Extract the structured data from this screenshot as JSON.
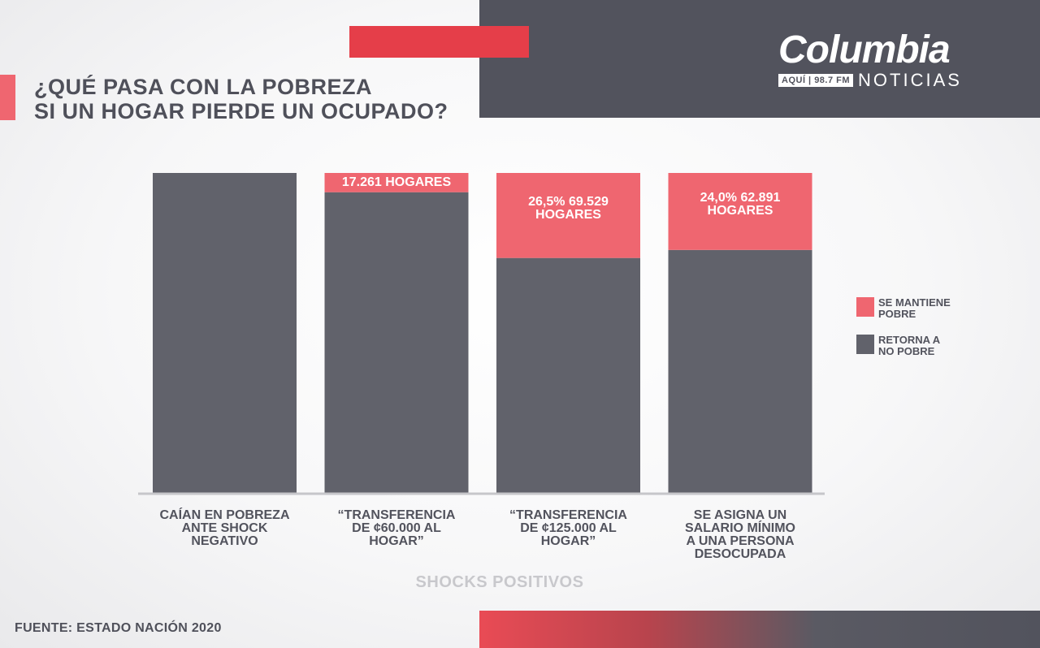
{
  "title_lines": [
    "¿QUÉ PASA CON LA POBREZA",
    "SI UN HOGAR PIERDE UN OCUPADO?"
  ],
  "logo": {
    "name": "Columbia",
    "frequency": "AQUÍ | 98.7 FM",
    "sub": "NOTICIAS"
  },
  "source": "FUENTE: ESTADO NACIÓN 2020",
  "colors": {
    "accent_red": "#e53e49",
    "pink": "#ef6670",
    "dark": "#52535d",
    "bar_dark": "#61626b"
  },
  "chart_data": {
    "type": "bar",
    "stacked": true,
    "percent": true,
    "categories": [
      [
        "CAÍAN EN POBREZA",
        "ANTE SHOCK",
        "NEGATIVO"
      ],
      [
        "“TRANSFERENCIA",
        "DE ¢60.000 AL",
        "HOGAR”"
      ],
      [
        "“TRANSFERENCIA",
        "DE ¢125.000 AL",
        "HOGAR”"
      ],
      [
        "SE ASIGNA UN",
        "SALARIO MÍNIMO",
        "A UNA PERSONA",
        "DESOCUPADA"
      ]
    ],
    "series": [
      {
        "name": "RETORNA A NO POBRE",
        "legend_lines": [
          "RETORNA A",
          "NO POBRE"
        ],
        "color": "#61626b",
        "values": [
          100,
          94,
          73.5,
          76
        ]
      },
      {
        "name": "SE MANTIENE POBRE",
        "legend_lines": [
          "SE MANTIENE",
          "POBRE"
        ],
        "color": "#ef6670",
        "values": [
          0,
          6,
          26.5,
          24.0
        ]
      }
    ],
    "segment_labels": [
      [],
      [
        "17.261 HOGARES"
      ],
      [
        "26,5% 69.529",
        "HOGARES"
      ],
      [
        "24,0% 62.891",
        "HOGARES"
      ]
    ],
    "xlabel": "SHOCKS POSITIVOS",
    "ylim": [
      0,
      100
    ],
    "grid": false,
    "legend_position": "right"
  }
}
